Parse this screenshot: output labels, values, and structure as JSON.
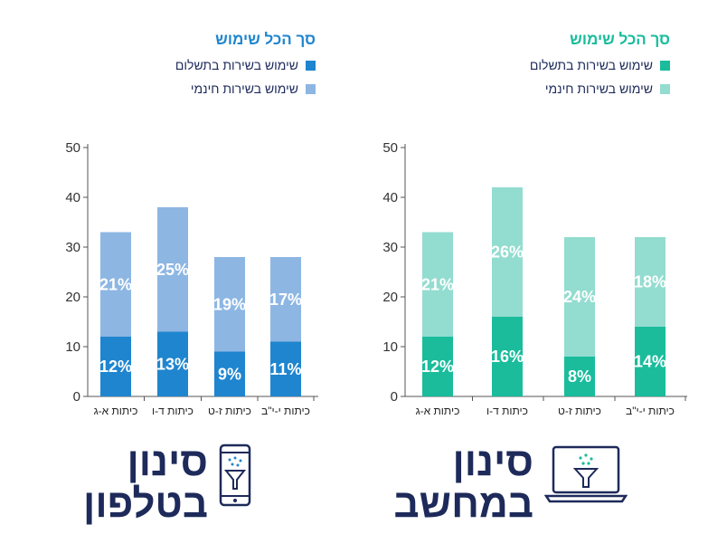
{
  "panels": [
    {
      "id": "phone",
      "legend": {
        "title": "סך הכל שימוש",
        "paid": "שימוש בשירות בתשלום",
        "free": "שימוש בשירות חינמי"
      },
      "title_line1": "סינון",
      "title_line2": "בטלפון",
      "icon": "phone-filter-icon",
      "colors": {
        "paid": "#1f85cf",
        "free": "#8db6e3",
        "title": "#1f85cf"
      }
    },
    {
      "id": "computer",
      "legend": {
        "title": "סך הכל שימוש",
        "paid": "שימוש בשירות בתשלום",
        "free": "שימוש בשירות חינמי"
      },
      "title_line1": "סינון",
      "title_line2": "במחשב",
      "icon": "laptop-filter-icon",
      "colors": {
        "paid": "#1abc9c",
        "free": "#93dcd0",
        "title": "#1abc9c"
      }
    }
  ],
  "chart_data": [
    {
      "type": "bar",
      "stacked": true,
      "categories": [
        "כיתות א-ג",
        "כיתות ד-ו",
        "כיתות ז-ט",
        "כיתות י-י\"ב"
      ],
      "series": [
        {
          "name": "שימוש בשירות בתשלום",
          "values": [
            12,
            13,
            9,
            11
          ],
          "labels": [
            "12%",
            "13%",
            "9%",
            "11%"
          ]
        },
        {
          "name": "שימוש בשירות חינמי",
          "values": [
            21,
            25,
            19,
            17
          ],
          "labels": [
            "21%",
            "25%",
            "19%",
            "17%"
          ]
        }
      ],
      "ylim": [
        0,
        50
      ],
      "yticks": [
        0,
        10,
        20,
        30,
        40,
        50
      ],
      "grid": false
    },
    {
      "type": "bar",
      "stacked": true,
      "categories": [
        "כיתות א-ג",
        "כיתות ד-ו",
        "כיתות ז-ט",
        "כיתות י-י\"ב"
      ],
      "series": [
        {
          "name": "שימוש בשירות בתשלום",
          "values": [
            12,
            16,
            8,
            14
          ],
          "labels": [
            "12%",
            "16%",
            "8%",
            "14%"
          ]
        },
        {
          "name": "שימוש בשירות חינמי",
          "values": [
            21,
            26,
            24,
            18
          ],
          "labels": [
            "21%",
            "26%",
            "24%",
            "18%"
          ]
        }
      ],
      "ylim": [
        0,
        50
      ],
      "yticks": [
        0,
        10,
        20,
        30,
        40,
        50
      ],
      "grid": false
    }
  ]
}
